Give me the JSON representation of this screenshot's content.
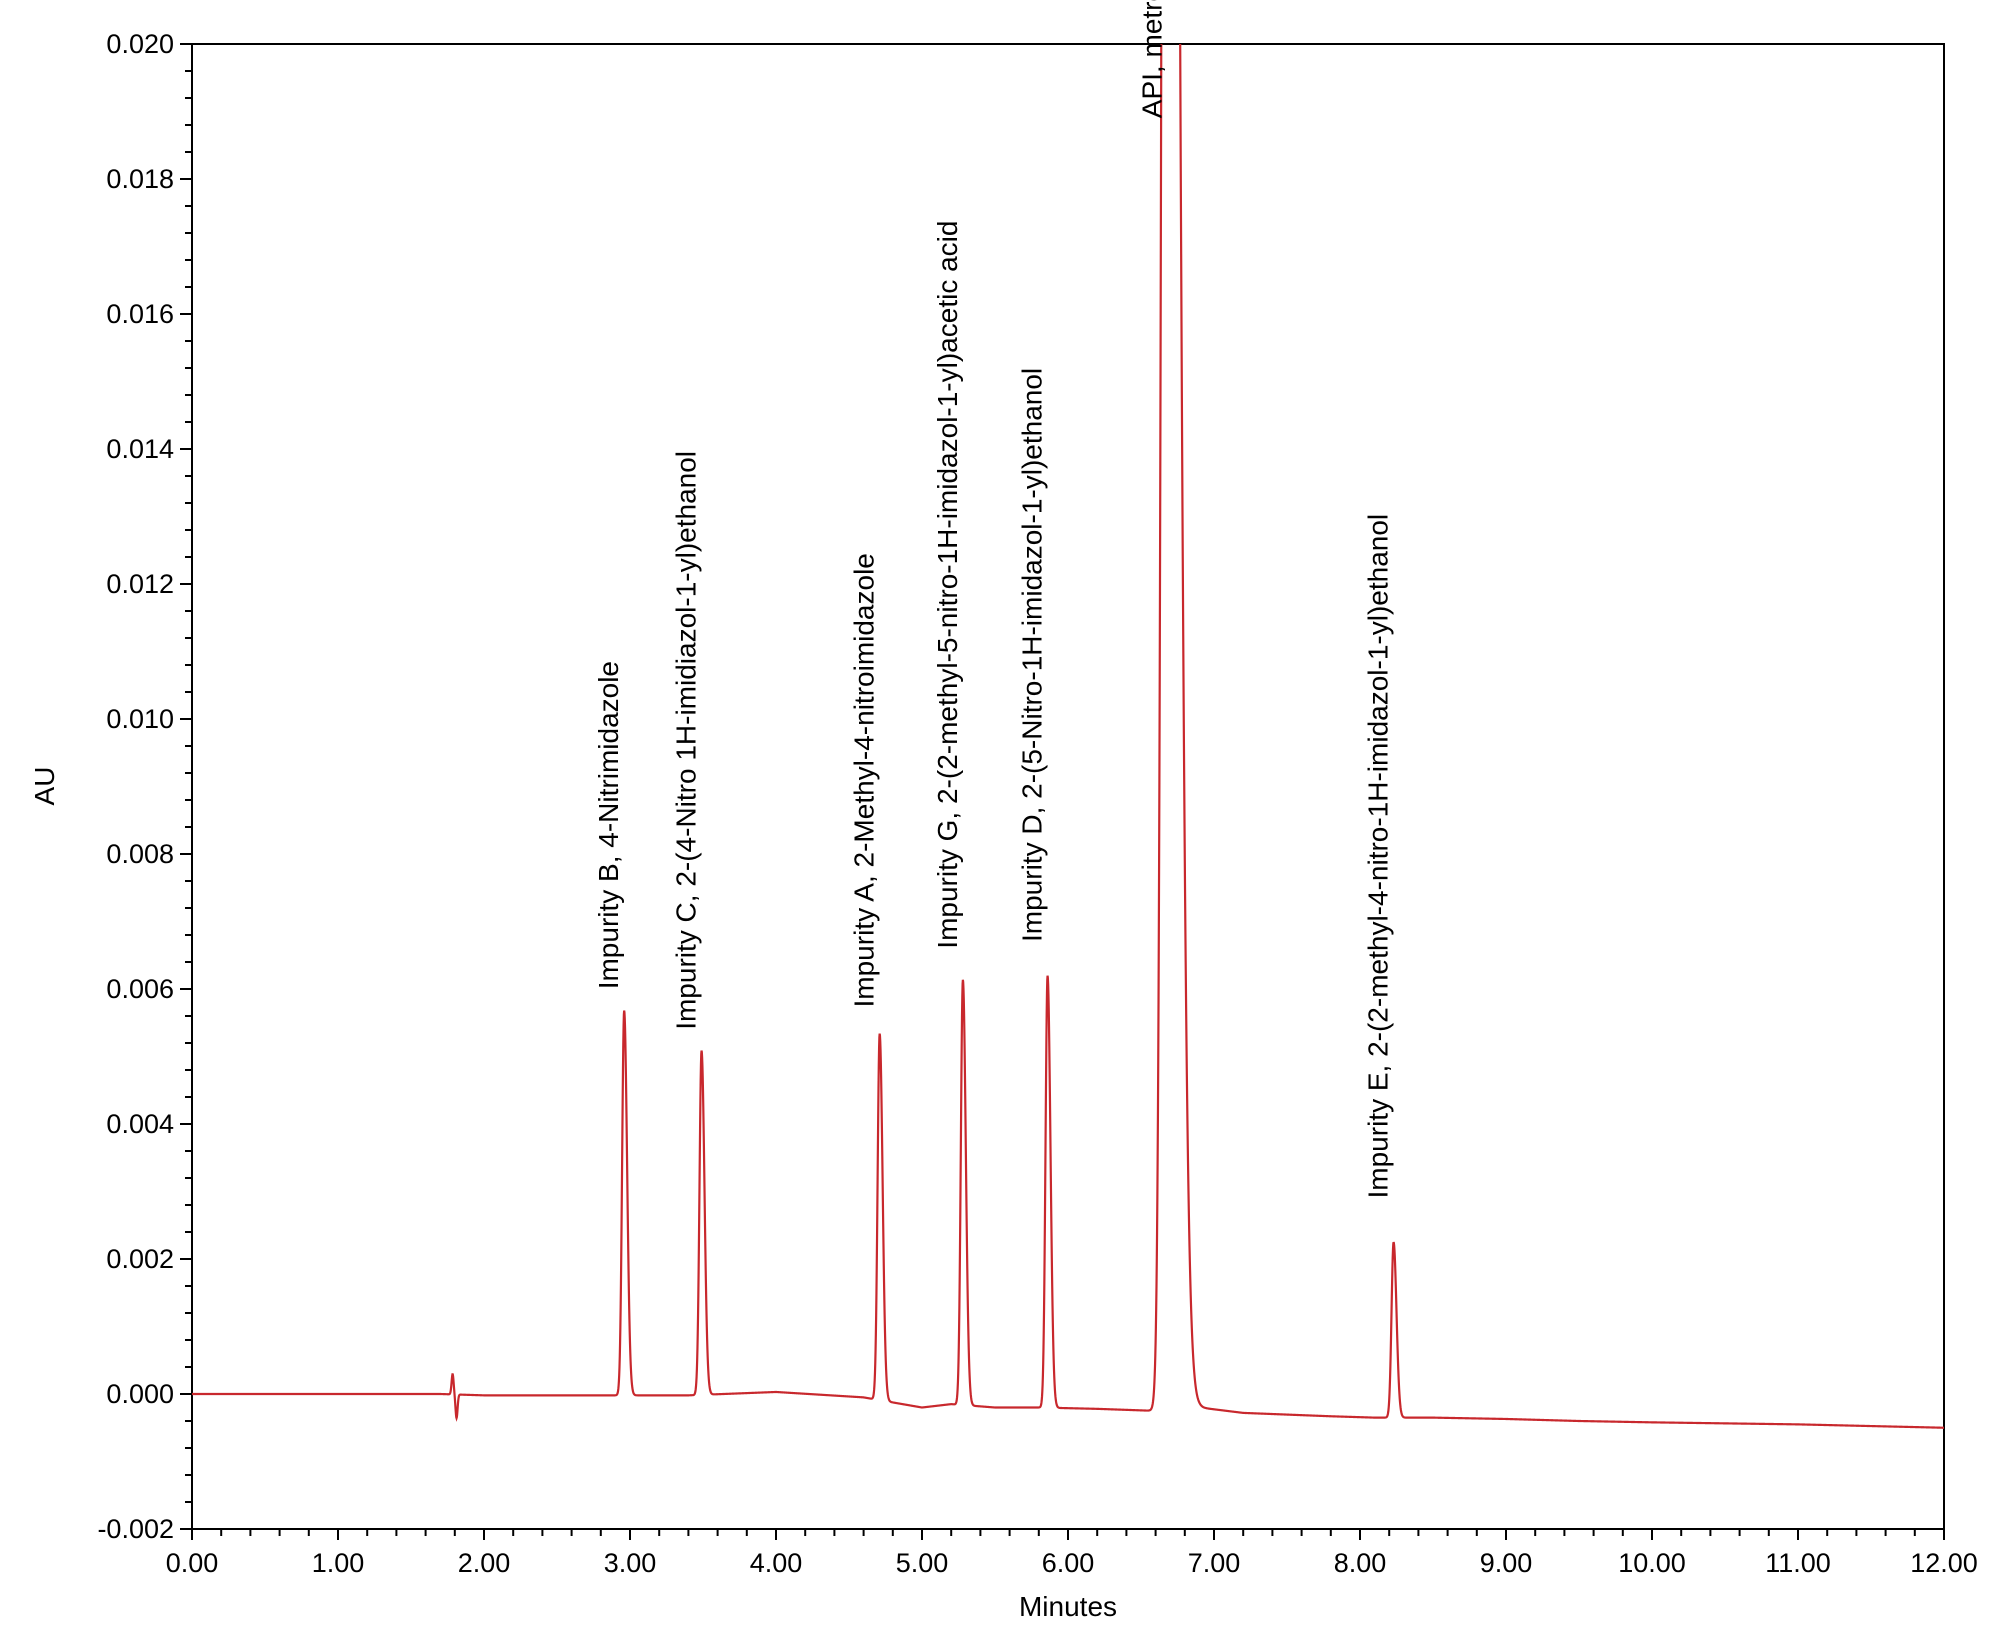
{
  "chart_data": {
    "type": "line",
    "title": "",
    "xlabel": "Minutes",
    "ylabel": "AU",
    "xlim": [
      0.0,
      12.0
    ],
    "ylim": [
      -0.002,
      0.02
    ],
    "x_ticks": [
      "0.00",
      "1.00",
      "2.00",
      "3.00",
      "4.00",
      "5.00",
      "6.00",
      "7.00",
      "8.00",
      "9.00",
      "10.00",
      "11.00",
      "12.00"
    ],
    "y_ticks": [
      "-0.002",
      "0.000",
      "0.002",
      "0.004",
      "0.006",
      "0.008",
      "0.010",
      "0.012",
      "0.014",
      "0.016",
      "0.018",
      "0.020"
    ],
    "grid": false,
    "series": [
      {
        "color": "#c8282d",
        "baseline": [
          [
            0.0,
            0.0
          ],
          [
            1.0,
            0.0
          ],
          [
            1.5,
            0.0
          ],
          [
            1.7,
            0.0
          ],
          [
            2.0,
            -2e-05
          ],
          [
            2.8,
            -2e-05
          ],
          [
            3.4,
            -2e-05
          ],
          [
            4.0,
            3e-05
          ],
          [
            4.6,
            -5e-05
          ],
          [
            5.0,
            -0.0002
          ],
          [
            5.2,
            -0.00015
          ],
          [
            5.5,
            -0.0002
          ],
          [
            5.8,
            -0.0002
          ],
          [
            6.2,
            -0.00022
          ],
          [
            6.6,
            -0.00025
          ],
          [
            6.9,
            -0.0002
          ],
          [
            7.2,
            -0.00028
          ],
          [
            7.8,
            -0.00033
          ],
          [
            8.1,
            -0.00035
          ],
          [
            8.5,
            -0.00035
          ],
          [
            9.0,
            -0.00037
          ],
          [
            9.5,
            -0.0004
          ],
          [
            10.0,
            -0.00042
          ],
          [
            11.0,
            -0.00045
          ],
          [
            12.0,
            -0.0005
          ]
        ],
        "disturbance": {
          "x": 1.8,
          "high": 0.0003,
          "low": -0.00035
        },
        "peaks": [
          {
            "label": "Impurity B, 4-Nitrimidazole",
            "rt": 2.96,
            "height": 0.0057
          },
          {
            "label": "Impurity C, 2-(4-Nitro 1H-imidiazol-1-yl)ethanol",
            "rt": 3.49,
            "height": 0.0051
          },
          {
            "label": "Impurity A, 2-Methyl-4-nitroimidazole",
            "rt": 4.71,
            "height": 0.00543
          },
          {
            "label": "Impurity G, 2-(2-methyl-5-nitro-1H-imidazol-1-yl)acetic acid",
            "rt": 5.28,
            "height": 0.0063
          },
          {
            "label": "Impurity D, 2-(5-Nitro-1H-imidazol-1-yl)ethanol",
            "rt": 5.86,
            "height": 0.0064
          },
          {
            "label": "API, metronidizole",
            "rt": 6.68,
            "height": 0.02,
            "offscale": true
          },
          {
            "label": "Impurity E, 2-(2-methyl-4-nitro-1H-imidazol-1-yl)ethanol",
            "rt": 8.23,
            "height": 0.0026
          }
        ]
      }
    ]
  }
}
